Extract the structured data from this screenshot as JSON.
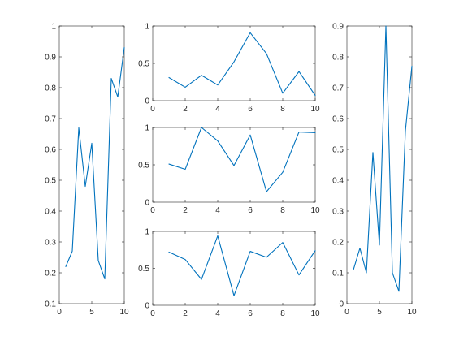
{
  "style": {
    "line_color": "#0072BD",
    "axes_color": "#262626",
    "background": "#ffffff"
  },
  "chart_data": [
    {
      "id": "left-tall",
      "type": "line",
      "x": [
        1,
        2,
        3,
        4,
        5,
        6,
        7,
        8,
        9,
        10
      ],
      "series": [
        {
          "values": [
            0.22,
            0.27,
            0.67,
            0.48,
            0.62,
            0.24,
            0.18,
            0.83,
            0.77,
            0.93
          ]
        }
      ],
      "xlim": [
        0,
        10
      ],
      "ylim": [
        0.1,
        1
      ],
      "xticks": [
        0,
        5,
        10
      ],
      "xtick_labels": [
        "0",
        "5",
        "10"
      ],
      "yticks": [
        0.1,
        0.2,
        0.3,
        0.4,
        0.5,
        0.6,
        0.7,
        0.8,
        0.9,
        1
      ],
      "ytick_labels": [
        "0.1",
        "0.2",
        "0.3",
        "0.4",
        "0.5",
        "0.6",
        "0.7",
        "0.8",
        "0.9",
        "1"
      ],
      "grid": false
    },
    {
      "id": "middle-top",
      "type": "line",
      "x": [
        1,
        2,
        3,
        4,
        5,
        6,
        7,
        8,
        9,
        10
      ],
      "series": [
        {
          "values": [
            0.31,
            0.18,
            0.34,
            0.21,
            0.52,
            0.91,
            0.63,
            0.1,
            0.39,
            0.07
          ]
        }
      ],
      "xlim": [
        0,
        10
      ],
      "ylim": [
        0,
        1
      ],
      "xticks": [
        0,
        2,
        4,
        6,
        8,
        10
      ],
      "xtick_labels": [
        "0",
        "2",
        "4",
        "6",
        "8",
        "10"
      ],
      "yticks": [
        0,
        0.5,
        1
      ],
      "ytick_labels": [
        "0",
        "0.5",
        "1"
      ],
      "grid": false
    },
    {
      "id": "middle-center",
      "type": "line",
      "x": [
        1,
        2,
        3,
        4,
        5,
        6,
        7,
        8,
        9,
        10
      ],
      "series": [
        {
          "values": [
            0.51,
            0.44,
            1.0,
            0.82,
            0.49,
            0.9,
            0.14,
            0.4,
            0.94,
            0.93
          ]
        }
      ],
      "xlim": [
        0,
        10
      ],
      "ylim": [
        0,
        1
      ],
      "xticks": [
        0,
        2,
        4,
        6,
        8,
        10
      ],
      "xtick_labels": [
        "0",
        "2",
        "4",
        "6",
        "8",
        "10"
      ],
      "yticks": [
        0,
        0.5,
        1
      ],
      "ytick_labels": [
        "0",
        "0.5",
        "1"
      ],
      "grid": false
    },
    {
      "id": "middle-bottom",
      "type": "line",
      "x": [
        1,
        2,
        3,
        4,
        5,
        6,
        7,
        8,
        9,
        10
      ],
      "series": [
        {
          "values": [
            0.72,
            0.62,
            0.35,
            0.94,
            0.13,
            0.73,
            0.65,
            0.85,
            0.41,
            0.74
          ]
        }
      ],
      "xlim": [
        0,
        10
      ],
      "ylim": [
        0,
        1
      ],
      "xticks": [
        0,
        2,
        4,
        6,
        8,
        10
      ],
      "xtick_labels": [
        "0",
        "2",
        "4",
        "6",
        "8",
        "10"
      ],
      "yticks": [
        0,
        0.5,
        1
      ],
      "ytick_labels": [
        "0",
        "0.5",
        "1"
      ],
      "grid": false
    },
    {
      "id": "right-tall",
      "type": "line",
      "x": [
        1,
        2,
        3,
        4,
        5,
        6,
        7,
        8,
        9,
        10
      ],
      "series": [
        {
          "values": [
            0.11,
            0.18,
            0.1,
            0.49,
            0.19,
            0.9,
            0.1,
            0.04,
            0.56,
            0.77
          ]
        }
      ],
      "xlim": [
        0,
        10
      ],
      "ylim": [
        0,
        0.9
      ],
      "xticks": [
        0,
        5,
        10
      ],
      "xtick_labels": [
        "0",
        "5",
        "10"
      ],
      "yticks": [
        0,
        0.1,
        0.2,
        0.3,
        0.4,
        0.5,
        0.6,
        0.7,
        0.8,
        0.9
      ],
      "ytick_labels": [
        "0",
        "0.1",
        "0.2",
        "0.3",
        "0.4",
        "0.5",
        "0.6",
        "0.7",
        "0.8",
        "0.9"
      ],
      "grid": false
    }
  ]
}
